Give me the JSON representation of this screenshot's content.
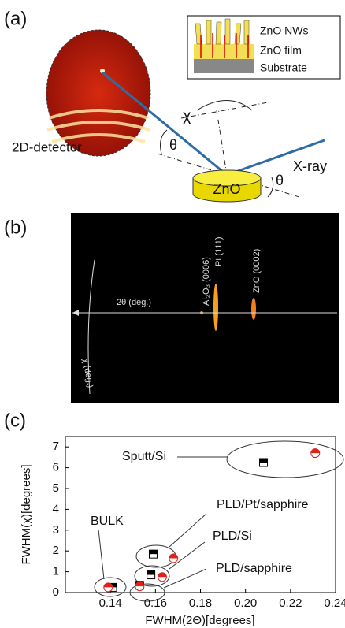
{
  "panel_a": {
    "label": "(a)",
    "inset": [
      "ZnO NWs",
      "ZnO film",
      "Substrate"
    ],
    "chi": "χ",
    "theta_left": "θ",
    "detector": "2D-detector",
    "xray": "X-ray",
    "sample": "ZnO",
    "theta_right": "θ"
  },
  "panel_b": {
    "label": "(b)",
    "peaks": [
      "Al₂O₃ (0006)",
      "Pt (111)",
      "ZnO (0002)"
    ],
    "axis_2theta": "2θ (deg.)",
    "axis_chi": "χ (deg.)"
  },
  "panel_c": {
    "label": "(c)",
    "annotations": [
      "Sputt/Si",
      "BULK",
      "PLD/Pt/sapphire",
      "PLD/Si",
      "PLD/sapphire"
    ]
  },
  "chart_data": {
    "type": "scatter",
    "xlabel": "FWHM(2Θ)[degrees]",
    "ylabel": "FWHM(χ)[degrees]",
    "xlim": [
      0.12,
      0.24
    ],
    "xticks": [
      0.14,
      0.16,
      0.18,
      {
        "value": 0.2,
        "label": "0.20"
      },
      0.22,
      0.24
    ],
    "ylim": [
      0,
      7.5
    ],
    "yticks": [
      0,
      1,
      2,
      3,
      4,
      5,
      6,
      7
    ],
    "series": [
      {
        "color": "#000000",
        "x": [
          0.208,
          0.159,
          0.158,
          0.153,
          0.141
        ],
        "values": [
          6.25,
          1.85,
          0.85,
          0.35,
          0.25
        ]
      },
      {
        "color": "#e0201b",
        "x": [
          0.231,
          0.168,
          0.163,
          0.153,
          0.139
        ],
        "values": [
          6.7,
          1.65,
          0.75,
          0.3,
          0.25
        ]
      }
    ]
  }
}
